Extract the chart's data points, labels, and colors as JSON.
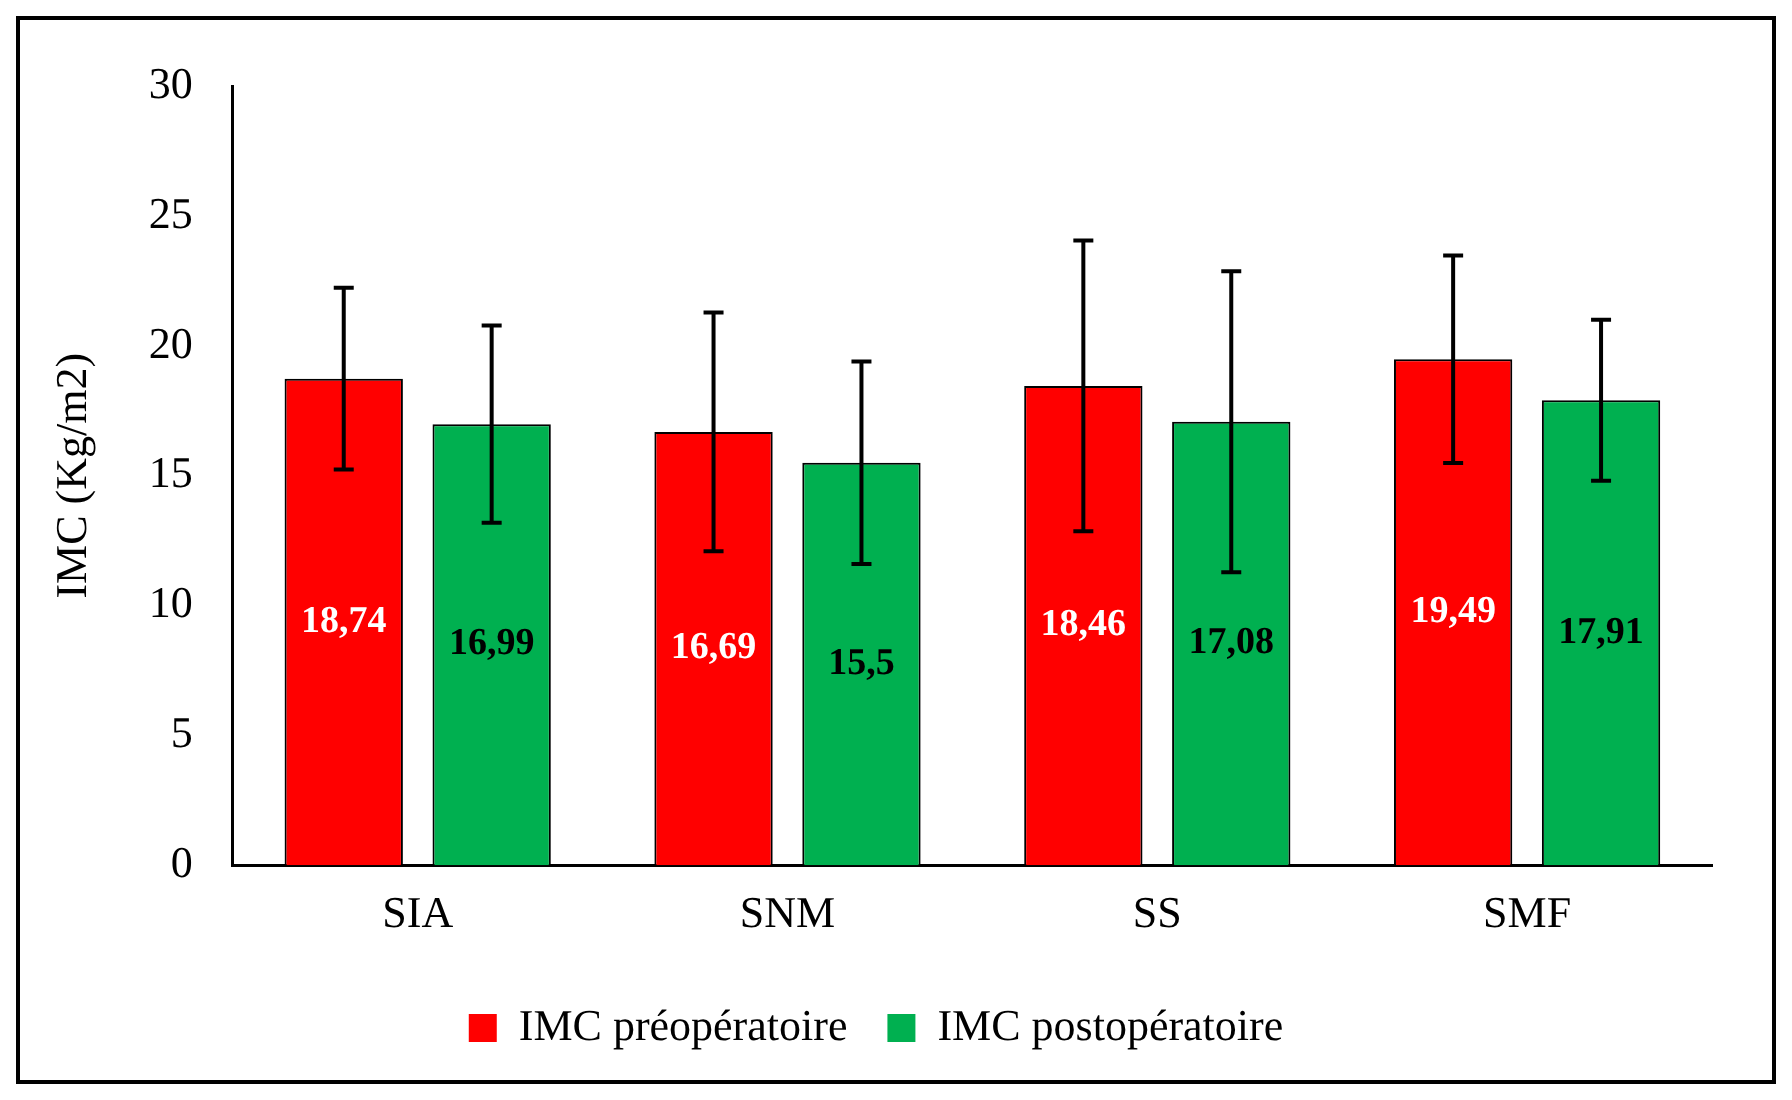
{
  "chart_data": {
    "type": "bar",
    "ylabel": "IMC (Kg/m2)",
    "categories": [
      "SIA",
      "SNM",
      "SS",
      "SMF"
    ],
    "series": [
      {
        "name": "IMC préopératoire",
        "color": "#ff0000",
        "values": [
          18.74,
          16.69,
          18.46,
          19.49
        ],
        "errors": [
          3.5,
          4.6,
          5.6,
          4.0
        ],
        "value_labels": [
          "18,74",
          "16,69",
          "18,46",
          "19,49"
        ]
      },
      {
        "name": "IMC postopératoire",
        "color": "#00b050",
        "values": [
          16.99,
          15.5,
          17.08,
          17.91
        ],
        "errors": [
          3.8,
          3.9,
          5.8,
          3.1
        ],
        "value_labels": [
          "16,99",
          "15,5",
          "17,08",
          "17,91"
        ]
      }
    ],
    "ylim": [
      0,
      30
    ],
    "yticks": [
      0,
      5,
      10,
      15,
      20,
      25,
      30
    ],
    "grid": false,
    "legend": "bottom"
  }
}
